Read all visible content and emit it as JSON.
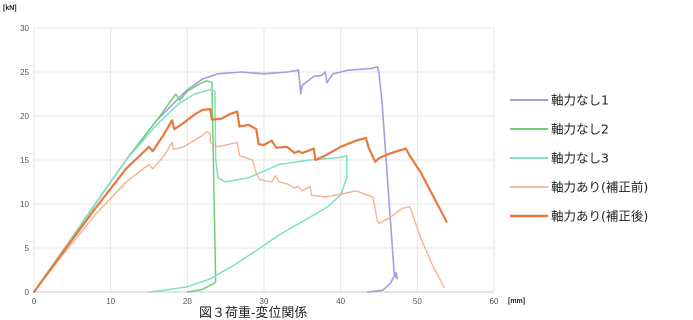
{
  "chart_data": {
    "type": "line",
    "caption": "図３荷重-変位関係",
    "y_unit": "[kN]",
    "x_unit": "[mm]",
    "xlim": [
      0,
      60
    ],
    "ylim": [
      0,
      30
    ],
    "x_ticks": [
      0,
      10,
      20,
      30,
      40,
      50,
      60
    ],
    "y_ticks": [
      0,
      5,
      10,
      15,
      20,
      25,
      30
    ],
    "grid": true,
    "legend_position": "right",
    "series": [
      {
        "name": "軸力なし1",
        "color": "#a99be0",
        "width": 1.6,
        "points": [
          [
            0,
            0
          ],
          [
            4,
            5
          ],
          [
            8,
            10
          ],
          [
            12,
            15
          ],
          [
            16,
            19.5
          ],
          [
            20,
            23
          ],
          [
            22,
            24.2
          ],
          [
            24,
            24.8
          ],
          [
            27,
            25
          ],
          [
            30,
            24.8
          ],
          [
            33,
            25
          ],
          [
            34.5,
            25.2
          ],
          [
            34.8,
            22.5
          ],
          [
            35,
            23.5
          ],
          [
            36.5,
            24.5
          ],
          [
            37.5,
            24.6
          ],
          [
            38,
            25
          ],
          [
            38.2,
            23.8
          ],
          [
            39,
            24.8
          ],
          [
            41,
            25.2
          ],
          [
            44,
            25.4
          ],
          [
            44.8,
            25.6
          ],
          [
            45,
            24.8
          ],
          [
            45.4,
            21.5
          ],
          [
            46.5,
            8
          ],
          [
            47,
            2
          ],
          [
            47.4,
            1.5
          ],
          [
            47.2,
            2.2
          ],
          [
            46.5,
            1
          ],
          [
            45.5,
            0.2
          ],
          [
            43.5,
            0
          ]
        ]
      },
      {
        "name": "軸力なし2",
        "color": "#6fcf73",
        "width": 1.5,
        "points": [
          [
            0,
            0
          ],
          [
            4,
            5
          ],
          [
            8,
            10
          ],
          [
            12,
            15
          ],
          [
            16,
            19.5
          ],
          [
            18.5,
            22.5
          ],
          [
            19,
            21.8
          ],
          [
            20,
            22.8
          ],
          [
            21.5,
            23.6
          ],
          [
            22.5,
            24
          ],
          [
            23.2,
            23.8
          ],
          [
            23.5,
            10
          ],
          [
            23.7,
            1.2
          ],
          [
            23.5,
            1
          ],
          [
            22,
            0.3
          ],
          [
            20,
            0
          ]
        ]
      },
      {
        "name": "軸力なし3",
        "color": "#7ee0c8",
        "width": 1.5,
        "points": [
          [
            0,
            0
          ],
          [
            4,
            5
          ],
          [
            8,
            10
          ],
          [
            12,
            15
          ],
          [
            16,
            19
          ],
          [
            19,
            21.5
          ],
          [
            21,
            22.5
          ],
          [
            23,
            23
          ],
          [
            23.6,
            22.8
          ],
          [
            23.7,
            15
          ],
          [
            24,
            13
          ],
          [
            25,
            12.5
          ],
          [
            28,
            13
          ],
          [
            32,
            14.5
          ],
          [
            36,
            15
          ],
          [
            40,
            15.3
          ],
          [
            40.8,
            15.5
          ],
          [
            40.8,
            13
          ],
          [
            40,
            11
          ],
          [
            38,
            9.5
          ],
          [
            35,
            8
          ],
          [
            32,
            6.5
          ],
          [
            29,
            4.7
          ],
          [
            26,
            3
          ],
          [
            23,
            1.5
          ],
          [
            20,
            0.6
          ],
          [
            17,
            0.2
          ],
          [
            15,
            0
          ]
        ]
      },
      {
        "name": "軸力あり(補正前)",
        "color": "#f4b394",
        "width": 1.4,
        "points": [
          [
            0,
            0
          ],
          [
            4,
            4.5
          ],
          [
            8,
            8.8
          ],
          [
            12,
            12.5
          ],
          [
            15,
            14.5
          ],
          [
            15.5,
            14
          ],
          [
            17,
            15.5
          ],
          [
            18,
            17
          ],
          [
            18.2,
            16.2
          ],
          [
            19.5,
            16.5
          ],
          [
            20.5,
            17
          ],
          [
            22,
            17.8
          ],
          [
            22.5,
            18.2
          ],
          [
            23,
            18
          ],
          [
            23,
            17
          ],
          [
            24,
            16.5
          ],
          [
            25.5,
            16.8
          ],
          [
            26.5,
            17
          ],
          [
            26.8,
            15.5
          ],
          [
            27.5,
            15.3
          ],
          [
            28.5,
            15
          ],
          [
            29,
            13.5
          ],
          [
            29.4,
            12.8
          ],
          [
            31,
            12.5
          ],
          [
            31.5,
            13.2
          ],
          [
            32,
            12.5
          ],
          [
            33,
            12.3
          ],
          [
            34,
            11.8
          ],
          [
            34.5,
            12
          ],
          [
            35,
            11.5
          ],
          [
            36,
            12
          ],
          [
            36.2,
            11
          ],
          [
            38,
            10.8
          ],
          [
            40.5,
            11.2
          ],
          [
            42,
            11.5
          ],
          [
            43.5,
            11
          ],
          [
            44.2,
            10.8
          ],
          [
            44.8,
            8
          ],
          [
            45,
            7.8
          ],
          [
            46.5,
            8.5
          ],
          [
            48,
            9.5
          ],
          [
            49,
            9.7
          ],
          [
            49.3,
            9
          ],
          [
            50.5,
            6
          ],
          [
            52,
            3
          ],
          [
            53.5,
            0.5
          ]
        ]
      },
      {
        "name": "軸力あり(補正後)",
        "color": "#e7793c",
        "width": 2.2,
        "points": [
          [
            0,
            0
          ],
          [
            4,
            4.8
          ],
          [
            8,
            9.5
          ],
          [
            12,
            14
          ],
          [
            15,
            16.5
          ],
          [
            15.5,
            16
          ],
          [
            17,
            18
          ],
          [
            18,
            19.5
          ],
          [
            18.3,
            18.5
          ],
          [
            19.5,
            19.2
          ],
          [
            21,
            20.2
          ],
          [
            22,
            20.7
          ],
          [
            23,
            20.8
          ],
          [
            23.2,
            19.6
          ],
          [
            24.5,
            19.7
          ],
          [
            25.5,
            20.2
          ],
          [
            26.5,
            20.5
          ],
          [
            26.8,
            18.8
          ],
          [
            28,
            19
          ],
          [
            29,
            18.5
          ],
          [
            29.3,
            16.8
          ],
          [
            30,
            16.7
          ],
          [
            31,
            17.2
          ],
          [
            31.6,
            16.4
          ],
          [
            33,
            16.5
          ],
          [
            34,
            15.8
          ],
          [
            34.5,
            16
          ],
          [
            35,
            15.8
          ],
          [
            36.5,
            16.3
          ],
          [
            36.7,
            15
          ],
          [
            38,
            15.5
          ],
          [
            40,
            16.5
          ],
          [
            42,
            17.2
          ],
          [
            43.3,
            17.5
          ],
          [
            43.6,
            16.5
          ],
          [
            44.5,
            14.8
          ],
          [
            45,
            15.2
          ],
          [
            46,
            15.6
          ],
          [
            47,
            15.9
          ],
          [
            48.5,
            16.3
          ],
          [
            49,
            15.5
          ],
          [
            50.5,
            13.5
          ],
          [
            52,
            11
          ],
          [
            53.8,
            8
          ]
        ]
      }
    ]
  }
}
